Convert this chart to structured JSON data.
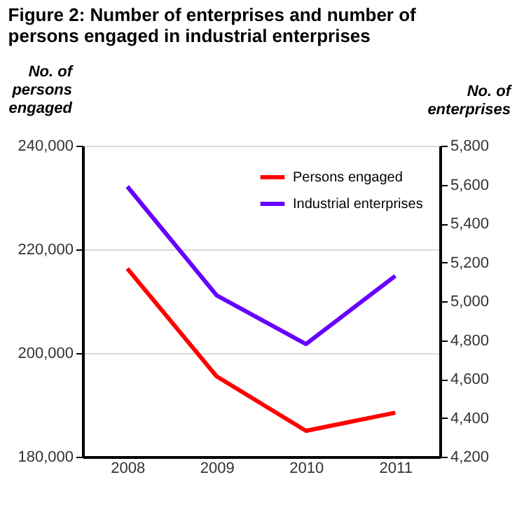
{
  "chart_data": {
    "type": "line",
    "title": "Figure 2: Number of enterprises and number of persons engaged in industrial enterprises",
    "ylabel": "No. of persons engaged",
    "y2label": "No. of enterprises",
    "categories": [
      "2008",
      "2009",
      "2010",
      "2011"
    ],
    "series": [
      {
        "name": "Persons engaged",
        "color": "#ff0000",
        "values": [
          216300,
          195500,
          185000,
          188500
        ]
      },
      {
        "name": "Industrial enterprises",
        "color": "#6600ff",
        "values": [
          5590,
          5030,
          4780,
          5130
        ],
        "axis": "y2"
      }
    ],
    "ylim": [
      180000,
      240000
    ],
    "yticks": [
      {
        "value": 180000,
        "label": "180,000"
      },
      {
        "value": 200000,
        "label": "200,000"
      },
      {
        "value": 220000,
        "label": "220,000"
      },
      {
        "value": 240000,
        "label": "240,000"
      }
    ],
    "y2lim": [
      4200,
      5800
    ],
    "y2ticks": [
      {
        "value": 4200,
        "label": "4,200"
      },
      {
        "value": 4400,
        "label": "4,400"
      },
      {
        "value": 4600,
        "label": "4,600"
      },
      {
        "value": 4800,
        "label": "4,800"
      },
      {
        "value": 5000,
        "label": "5,000"
      },
      {
        "value": 5200,
        "label": "5,200"
      },
      {
        "value": 5400,
        "label": "5,400"
      },
      {
        "value": 5600,
        "label": "5,600"
      },
      {
        "value": 5800,
        "label": "5,800"
      }
    ],
    "grid": "y",
    "legend": "top right",
    "marker": "none",
    "line_style": "solid"
  }
}
